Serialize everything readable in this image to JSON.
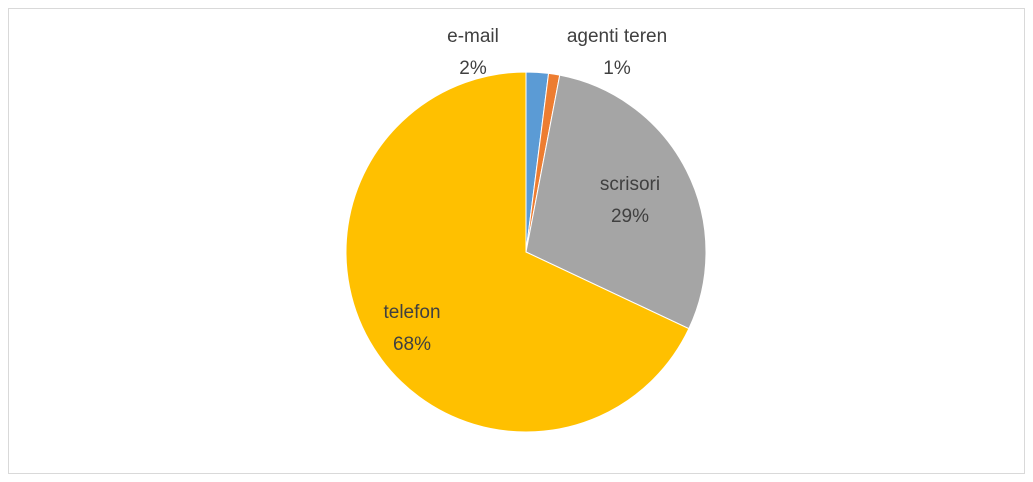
{
  "chart_data": {
    "type": "pie",
    "categories": [
      "e-mail",
      "agenti teren",
      "scrisori",
      "telefon"
    ],
    "values": [
      2,
      1,
      29,
      68
    ],
    "value_labels": [
      "2%",
      "1%",
      "29%",
      "68%"
    ],
    "colors": [
      "#5b9bd5",
      "#ed7d31",
      "#a5a5a5",
      "#ffc000"
    ]
  }
}
